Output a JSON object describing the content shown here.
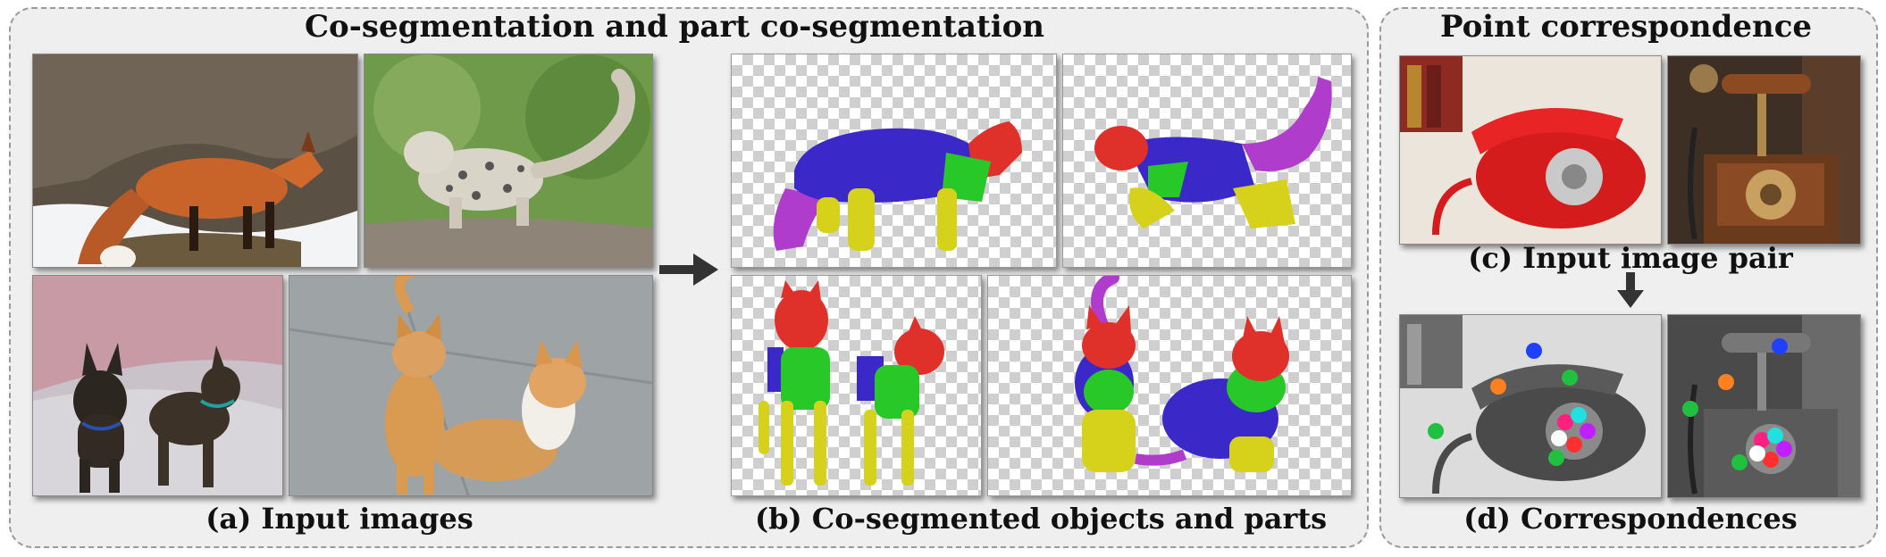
{
  "cosegmentation": {
    "title": "Co-segmentation and part co-segmentation",
    "caption_a": "(a) Input images",
    "caption_b": "(b) Co-segmented objects and parts",
    "images": [
      "fox",
      "snow-leopard-cub",
      "two-puppies",
      "two-cats"
    ],
    "part_colors": {
      "head": "#e0302a",
      "torso": "#3b28c8",
      "legs": "#d6d21c",
      "tail": "#b03ccc",
      "neck": "#28c828"
    }
  },
  "correspondence": {
    "title": "Point correspondence",
    "caption_c": "(c) Input image pair",
    "caption_d": "(d) Correspondences",
    "images": [
      "red-rotary-telephone",
      "antique-wooden-telephone"
    ],
    "point_colors": [
      "#2040ff",
      "#ff8020",
      "#20c040",
      "#ff2080",
      "#20e0e0",
      "#c020ff",
      "#ff3030",
      "#ffffff"
    ]
  }
}
